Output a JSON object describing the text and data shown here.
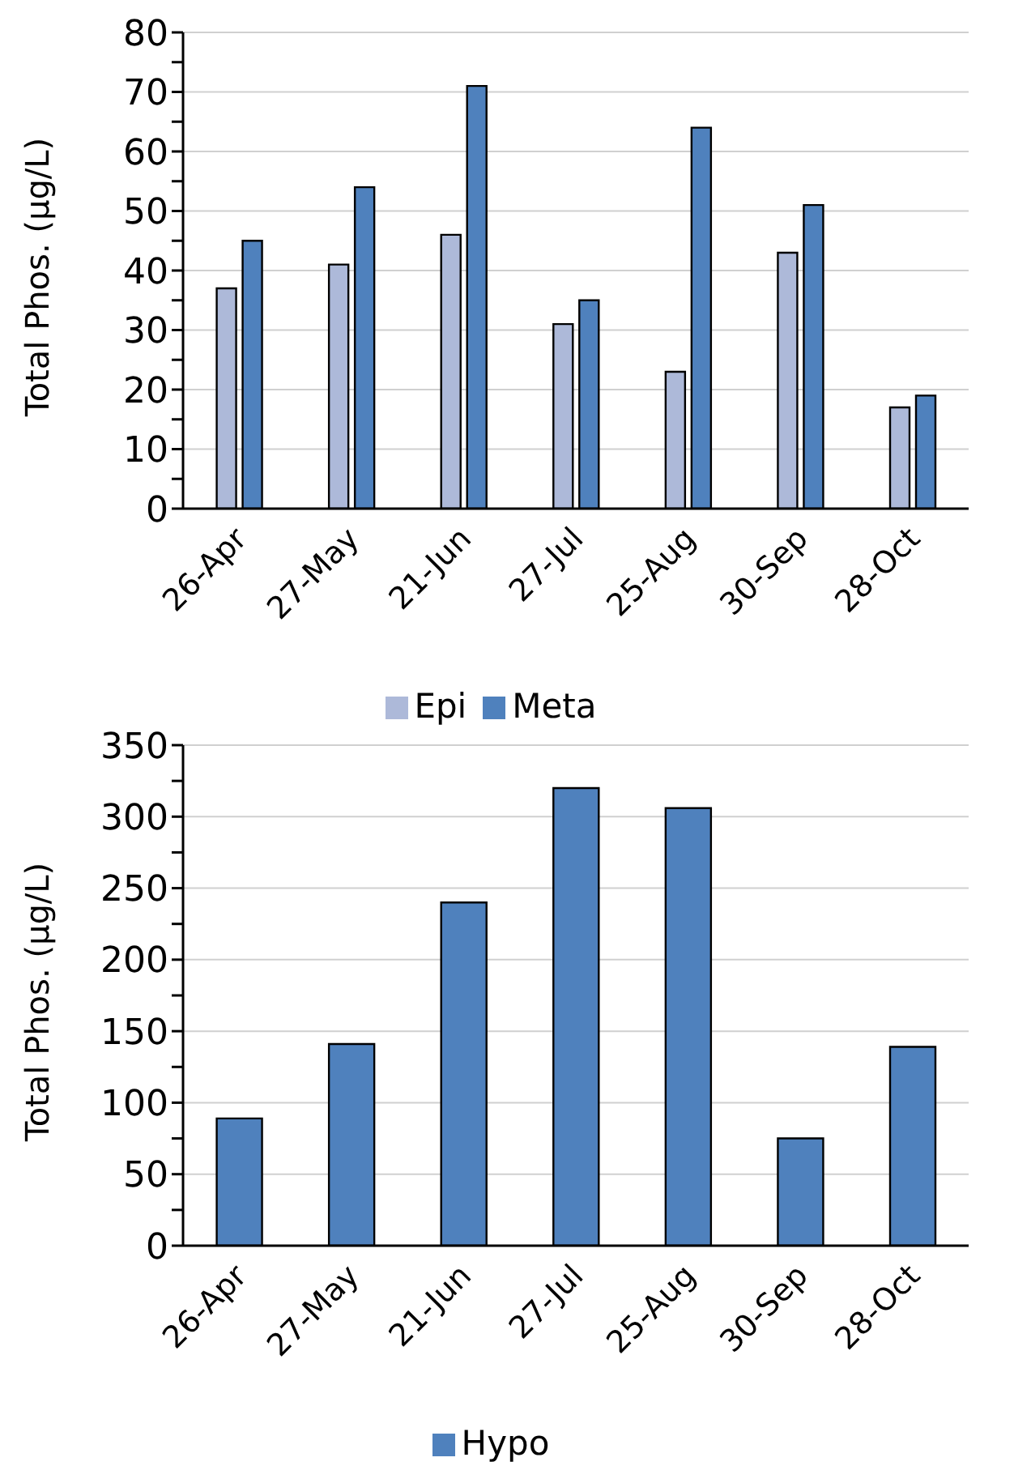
{
  "chart_data": [
    {
      "type": "bar",
      "ylabel": "Total Phos. (µg/L)",
      "categories": [
        "26-Apr",
        "27-May",
        "21-Jun",
        "27-Jul",
        "25-Aug",
        "30-Sep",
        "28-Oct"
      ],
      "series": [
        {
          "name": "Epi",
          "color": "#adb9d9",
          "values": [
            37,
            41,
            46,
            31,
            23,
            43,
            17
          ]
        },
        {
          "name": "Meta",
          "color": "#4f81bd",
          "values": [
            45,
            54,
            71,
            35,
            64,
            51,
            19
          ]
        }
      ],
      "ylim": [
        0,
        80
      ],
      "yticks": [
        0,
        {
          "value": 5,
          "label": null
        },
        10,
        {
          "value": 15,
          "label": null
        },
        20,
        {
          "value": 25,
          "label": null
        },
        30,
        {
          "value": 35,
          "label": null
        },
        40,
        {
          "value": 45,
          "label": null
        },
        50,
        {
          "value": 55,
          "label": null
        },
        60,
        {
          "value": 65,
          "label": null
        },
        70,
        {
          "value": 75,
          "label": null
        },
        80
      ],
      "grid": "y",
      "legend": "bottom"
    },
    {
      "type": "bar",
      "ylabel": "Total Phos. (µg/L)",
      "categories": [
        "26-Apr",
        "27-May",
        "21-Jun",
        "27-Jul",
        "25-Aug",
        "30-Sep",
        "28-Oct"
      ],
      "series": [
        {
          "name": "Hypo",
          "color": "#4f81bd",
          "values": [
            89,
            141,
            240,
            320,
            306,
            75,
            139
          ]
        }
      ],
      "ylim": [
        0,
        350
      ],
      "yticks": [
        0,
        {
          "value": 25,
          "label": null
        },
        50,
        {
          "value": 75,
          "label": null
        },
        100,
        {
          "value": 125,
          "label": null
        },
        150,
        {
          "value": 175,
          "label": null
        },
        200,
        {
          "value": 225,
          "label": null
        },
        250,
        {
          "value": 275,
          "label": null
        },
        300,
        {
          "value": 325,
          "label": null
        },
        350
      ],
      "grid": "y",
      "legend": "bottom"
    }
  ]
}
